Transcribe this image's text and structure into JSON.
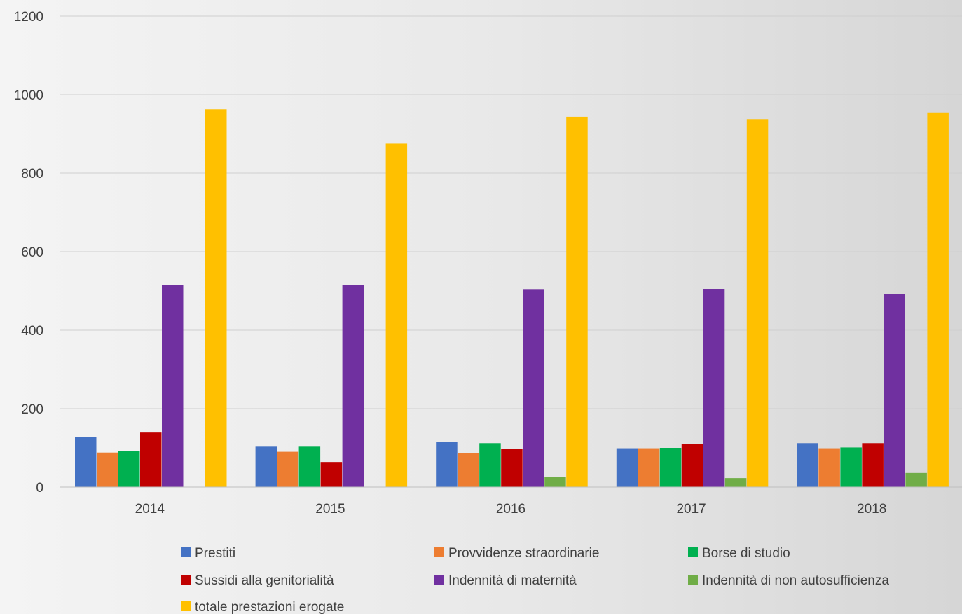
{
  "chart_data": {
    "type": "bar",
    "categories": [
      "2014",
      "2015",
      "2016",
      "2017",
      "2018"
    ],
    "series": [
      {
        "name": "Prestiti",
        "color": "#4472C4",
        "values": [
          127,
          103,
          116,
          99,
          112
        ]
      },
      {
        "name": "Provvidenze straordinarie",
        "color": "#ED7D31",
        "values": [
          88,
          90,
          87,
          99,
          99
        ]
      },
      {
        "name": "Borse di studio",
        "color": "#00B050",
        "values": [
          92,
          103,
          112,
          100,
          101
        ]
      },
      {
        "name": "Sussidi alla genitorialità",
        "color": "#C00000",
        "values": [
          139,
          64,
          98,
          109,
          112
        ]
      },
      {
        "name": "Indennità di maternità",
        "color": "#7030A0",
        "values": [
          515,
          515,
          503,
          505,
          492
        ]
      },
      {
        "name": "Indennità di non autosufficienza",
        "color": "#70AD47",
        "values": [
          0,
          0,
          25,
          23,
          36
        ]
      },
      {
        "name": "totale prestazioni erogate",
        "color": "#FFC000",
        "values": [
          962,
          876,
          943,
          937,
          954
        ]
      }
    ],
    "ylim": [
      0,
      1200
    ],
    "yticks": [
      0,
      200,
      400,
      600,
      800,
      1000,
      1200
    ],
    "grid": true,
    "legend_position": "bottom"
  }
}
